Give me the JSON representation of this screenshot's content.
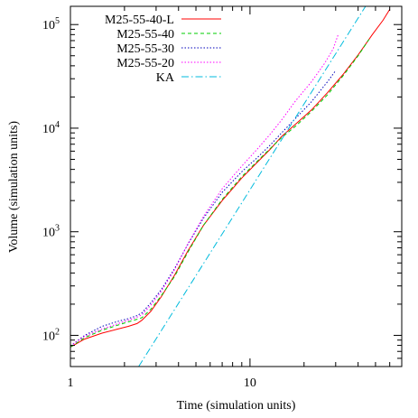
{
  "chart_data": {
    "type": "line",
    "title": "",
    "xlabel": "Time (simulation units)",
    "ylabel": "Volume (simulation units)",
    "xscale": "log",
    "yscale": "log",
    "xlim": [
      1,
      70
    ],
    "ylim": [
      50,
      150000
    ],
    "xticks": [
      {
        "value": 1,
        "label": "1"
      },
      {
        "value": 10,
        "label": "10"
      }
    ],
    "yticks": [
      {
        "value": 100,
        "base": "10",
        "exp": "2"
      },
      {
        "value": 1000,
        "base": "10",
        "exp": "3"
      },
      {
        "value": 10000,
        "base": "10",
        "exp": "4"
      },
      {
        "value": 100000,
        "base": "10",
        "exp": "5"
      }
    ],
    "grid": false,
    "legend_position": "top-left",
    "series": [
      {
        "name": "M25-55-40-L",
        "color": "#ff0000",
        "dash": "solid",
        "points": [
          [
            1.0,
            77
          ],
          [
            1.2,
            92
          ],
          [
            1.5,
            105
          ],
          [
            1.8,
            114
          ],
          [
            2.1,
            122
          ],
          [
            2.35,
            130
          ],
          [
            2.5,
            140
          ],
          [
            2.8,
            170
          ],
          [
            3.2,
            235
          ],
          [
            3.8,
            380
          ],
          [
            4.5,
            650
          ],
          [
            5.5,
            1150
          ],
          [
            7,
            2000
          ],
          [
            9,
            3300
          ],
          [
            11,
            4700
          ],
          [
            13,
            6300
          ],
          [
            15,
            8300
          ],
          [
            18,
            11000
          ],
          [
            22,
            15000
          ],
          [
            27,
            22000
          ],
          [
            33,
            33000
          ],
          [
            40,
            51000
          ],
          [
            48,
            80000
          ],
          [
            55,
            110000
          ],
          [
            60,
            140000
          ]
        ]
      },
      {
        "name": "M25-55-40",
        "color": "#00cc00",
        "dash": "dashed",
        "points": [
          [
            1.0,
            77
          ],
          [
            1.2,
            95
          ],
          [
            1.5,
            112
          ],
          [
            1.8,
            124
          ],
          [
            2.1,
            135
          ],
          [
            2.35,
            143
          ],
          [
            2.5,
            148
          ],
          [
            2.8,
            178
          ],
          [
            3.2,
            240
          ],
          [
            3.8,
            370
          ],
          [
            4.5,
            630
          ],
          [
            5.5,
            1150
          ],
          [
            7,
            2050
          ],
          [
            9,
            3400
          ],
          [
            11,
            4800
          ],
          [
            13,
            6400
          ],
          [
            15,
            8100
          ],
          [
            18,
            10500
          ],
          [
            22,
            14500
          ],
          [
            27,
            21000
          ],
          [
            33,
            32000
          ],
          [
            40,
            50000
          ],
          [
            46,
            72000
          ]
        ]
      },
      {
        "name": "M25-55-30",
        "color": "#0000bb",
        "dash": "dotted",
        "points": [
          [
            1.0,
            79
          ],
          [
            1.2,
            100
          ],
          [
            1.5,
            122
          ],
          [
            1.8,
            135
          ],
          [
            2.1,
            145
          ],
          [
            2.35,
            155
          ],
          [
            2.5,
            165
          ],
          [
            2.8,
            205
          ],
          [
            3.2,
            275
          ],
          [
            3.8,
            440
          ],
          [
            4.5,
            750
          ],
          [
            5.5,
            1350
          ],
          [
            7,
            2400
          ],
          [
            9,
            3800
          ],
          [
            11,
            5200
          ],
          [
            13,
            6900
          ],
          [
            15,
            9000
          ],
          [
            18,
            12500
          ],
          [
            22,
            18000
          ],
          [
            27,
            28000
          ],
          [
            30,
            36000
          ]
        ]
      },
      {
        "name": "M25-55-20",
        "color": "#ff00ff",
        "dash": "dotted",
        "points": [
          [
            1.0,
            79
          ],
          [
            1.2,
            98
          ],
          [
            1.5,
            115
          ],
          [
            1.8,
            128
          ],
          [
            2.1,
            140
          ],
          [
            2.35,
            150
          ],
          [
            2.5,
            158
          ],
          [
            2.8,
            195
          ],
          [
            3.2,
            265
          ],
          [
            3.8,
            430
          ],
          [
            4.5,
            760
          ],
          [
            5.5,
            1400
          ],
          [
            7,
            2600
          ],
          [
            9,
            4300
          ],
          [
            11,
            6300
          ],
          [
            13,
            8800
          ],
          [
            15,
            12000
          ],
          [
            18,
            18500
          ],
          [
            22,
            28000
          ],
          [
            26,
            42000
          ],
          [
            29,
            58000
          ],
          [
            31,
            80000
          ]
        ]
      },
      {
        "name": "KA",
        "color": "#00bbdd",
        "dash": "dashdot",
        "points": [
          [
            2.4,
            50
          ],
          [
            44,
            150000
          ]
        ]
      }
    ]
  }
}
